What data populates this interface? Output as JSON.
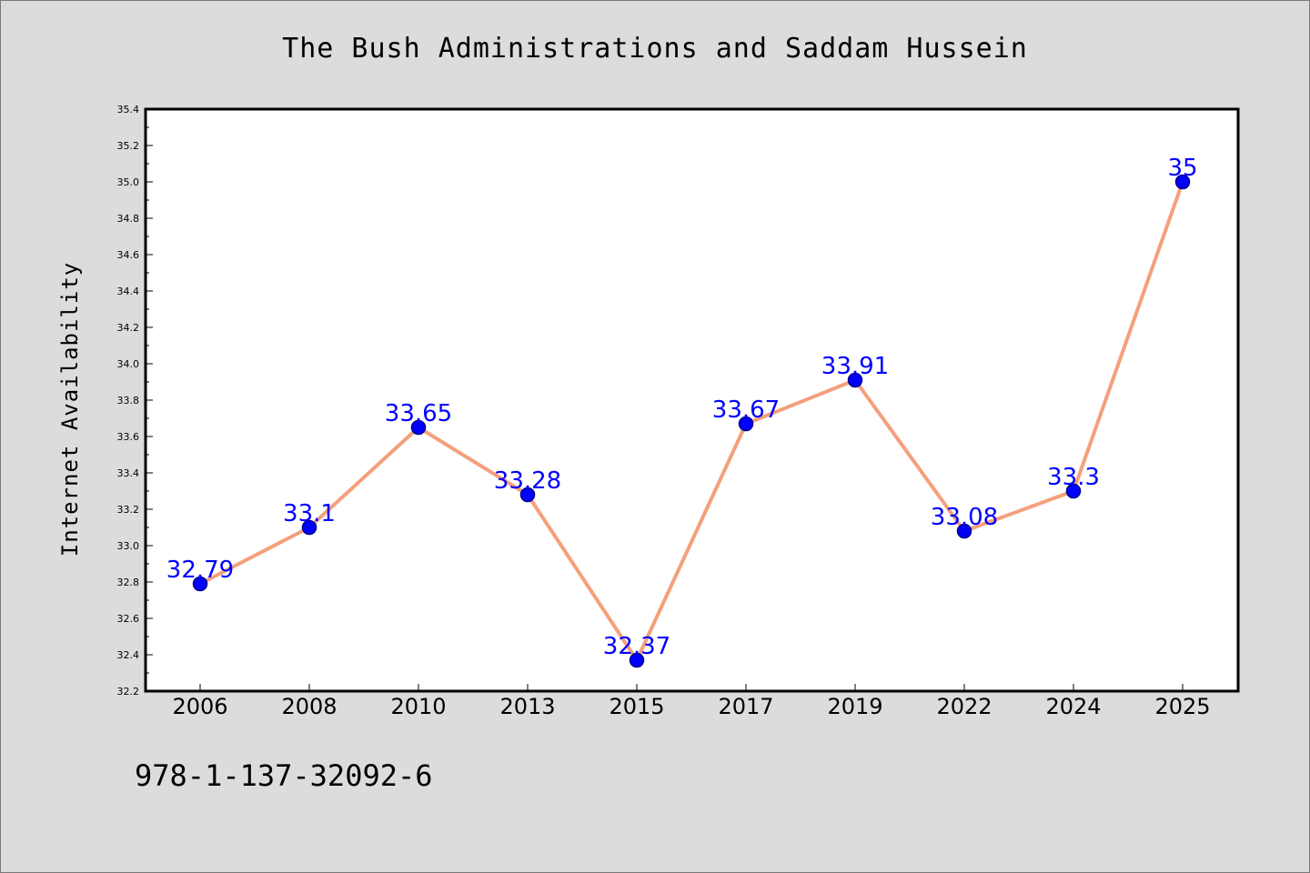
{
  "chart_data": {
    "type": "line",
    "title": "The Bush Administrations and Saddam Hussein",
    "xlabel": "",
    "ylabel": "Internet Availability",
    "categories": [
      "2006",
      "2008",
      "2010",
      "2013",
      "2015",
      "2017",
      "2019",
      "2022",
      "2024",
      "2025"
    ],
    "values": [
      32.79,
      33.1,
      33.65,
      33.28,
      32.37,
      33.67,
      33.91,
      33.08,
      33.3,
      35
    ],
    "data_labels": [
      "32.79",
      "33.1",
      "33.65",
      "33.28",
      "32.37",
      "33.67",
      "33.91",
      "33.08",
      "33.3",
      "35"
    ],
    "ylim": [
      32.2,
      35.4
    ],
    "yticks": [
      "32.2",
      "32.4",
      "32.6",
      "32.8",
      "33.0",
      "33.2",
      "33.4",
      "33.6",
      "33.8",
      "34.0",
      "34.2",
      "34.4",
      "34.6",
      "34.8",
      "35.0",
      "35.2",
      "35.4"
    ],
    "grid": false,
    "legend": "none",
    "colors": {
      "line": "#f4a07c",
      "marker": "#0000ff",
      "marker_edge": "#00008b",
      "labels": "#0000ff",
      "plot_background": "#ffffff",
      "figure_background": "#dcdcdc"
    }
  },
  "footnote": "978-1-137-32092-6"
}
